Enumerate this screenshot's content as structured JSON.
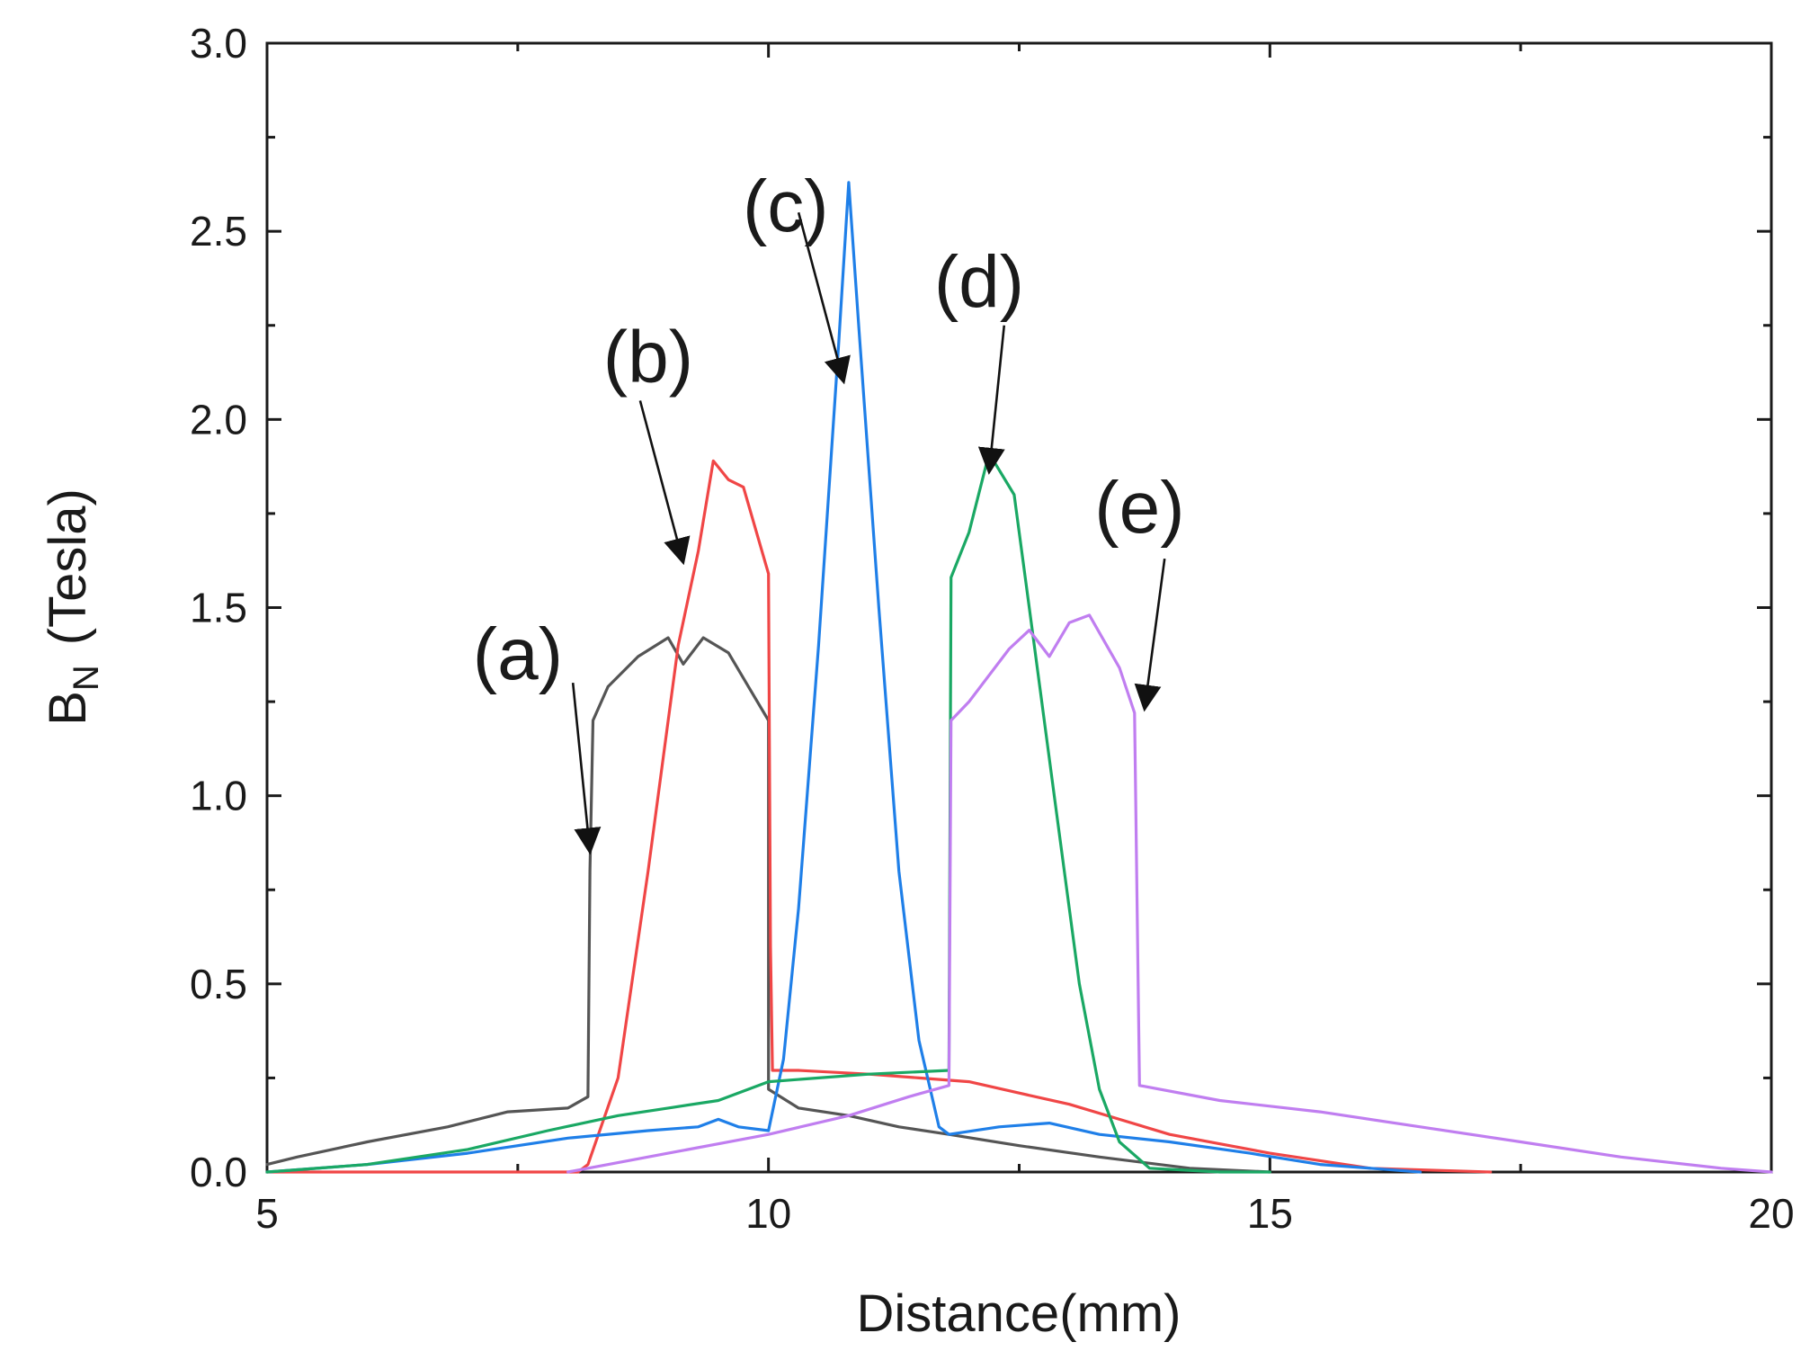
{
  "chart_data": {
    "type": "line",
    "title": "",
    "xlabel": "Distance(mm)",
    "ylabel_main": "B",
    "ylabel_sub": "N",
    "ylabel_unit": "(Tesla)",
    "xlim": [
      5,
      20
    ],
    "ylim": [
      0,
      3.0
    ],
    "x_ticks": [
      5,
      10,
      15,
      20
    ],
    "x_tick_labels": [
      "5",
      "10",
      "15",
      "20"
    ],
    "y_ticks": [
      0,
      0.5,
      1.0,
      1.5,
      2.0,
      2.5,
      3.0
    ],
    "y_tick_labels": [
      "0.0",
      "0.5",
      "1.0",
      "1.5",
      "2.0",
      "2.5",
      "3.0"
    ],
    "x_minor_step": 2.5,
    "y_minor_step": 0.25,
    "grid": false,
    "legend": "none",
    "series": [
      {
        "name": "(a)",
        "color": "#555555",
        "x": [
          5.0,
          5.3,
          6.0,
          6.8,
          7.4,
          8.0,
          8.2,
          8.22,
          8.25,
          8.4,
          8.7,
          9.0,
          9.15,
          9.35,
          9.6,
          9.8,
          10.0,
          10.0,
          10.3,
          10.8,
          11.3,
          11.8,
          12.5,
          13.3,
          14.2,
          15.0
        ],
        "y": [
          0.02,
          0.04,
          0.08,
          0.12,
          0.16,
          0.17,
          0.2,
          0.8,
          1.2,
          1.29,
          1.37,
          1.42,
          1.35,
          1.42,
          1.38,
          1.29,
          1.2,
          0.22,
          0.17,
          0.15,
          0.12,
          0.1,
          0.07,
          0.04,
          0.01,
          0.0
        ]
      },
      {
        "name": "(b)",
        "color": "#f04646",
        "x": [
          5.0,
          8.1,
          8.2,
          8.5,
          8.8,
          9.1,
          9.3,
          9.45,
          9.6,
          9.75,
          10.0,
          10.02,
          10.04,
          10.3,
          11.0,
          11.5,
          12.0,
          12.5,
          13.0,
          13.5,
          14.0,
          15.0,
          16.0,
          17.2
        ],
        "y": [
          0.0,
          0.0,
          0.02,
          0.25,
          0.8,
          1.4,
          1.65,
          1.89,
          1.84,
          1.82,
          1.59,
          0.6,
          0.27,
          0.27,
          0.26,
          0.25,
          0.24,
          0.21,
          0.18,
          0.14,
          0.1,
          0.05,
          0.01,
          0.0
        ]
      },
      {
        "name": "(c)",
        "color": "#1f7fe8",
        "x": [
          5.0,
          6.0,
          7.0,
          8.0,
          8.8,
          9.3,
          9.5,
          9.7,
          10.0,
          10.15,
          10.3,
          10.5,
          10.7,
          10.8,
          10.9,
          11.1,
          11.3,
          11.5,
          11.7,
          11.8,
          12.3,
          12.8,
          13.3,
          14.0,
          14.8,
          15.5,
          16.5
        ],
        "y": [
          0.0,
          0.02,
          0.05,
          0.09,
          0.11,
          0.12,
          0.14,
          0.12,
          0.11,
          0.3,
          0.7,
          1.4,
          2.2,
          2.63,
          2.25,
          1.5,
          0.8,
          0.35,
          0.12,
          0.1,
          0.12,
          0.13,
          0.1,
          0.08,
          0.05,
          0.02,
          0.0
        ]
      },
      {
        "name": "(d)",
        "color": "#1aa864",
        "x": [
          5.0,
          6.0,
          7.0,
          7.8,
          8.5,
          9.0,
          9.5,
          10.0,
          10.5,
          11.0,
          11.8,
          11.82,
          12.0,
          12.2,
          12.45,
          12.6,
          12.85,
          13.1,
          13.3,
          13.5,
          13.8,
          14.5,
          15.0
        ],
        "y": [
          0.0,
          0.02,
          0.06,
          0.11,
          0.15,
          0.17,
          0.19,
          0.24,
          0.25,
          0.26,
          0.27,
          1.58,
          1.7,
          1.91,
          1.8,
          1.5,
          1.0,
          0.5,
          0.22,
          0.08,
          0.01,
          0.0,
          0.0
        ]
      },
      {
        "name": "(e)",
        "color": "#c07ef0",
        "x": [
          8.0,
          9.0,
          10.0,
          10.8,
          11.4,
          11.8,
          11.82,
          12.0,
          12.4,
          12.6,
          12.8,
          13.0,
          13.2,
          13.5,
          13.65,
          13.7,
          14.5,
          15.5,
          16.5,
          17.5,
          18.5,
          19.5,
          20.0
        ],
        "y": [
          0.0,
          0.05,
          0.1,
          0.15,
          0.2,
          0.23,
          1.2,
          1.25,
          1.39,
          1.44,
          1.37,
          1.46,
          1.48,
          1.34,
          1.22,
          0.23,
          0.19,
          0.16,
          0.12,
          0.08,
          0.04,
          0.01,
          0.0
        ]
      }
    ],
    "annotations": [
      {
        "text": "(a)",
        "label_x": 7.95,
        "label_y": 1.31,
        "tail_x": 8.05,
        "tail_y": 1.3,
        "head_x": 8.22,
        "head_y": 0.85
      },
      {
        "text": "(b)",
        "label_x": 9.25,
        "label_y": 2.1,
        "tail_x": 8.72,
        "tail_y": 2.05,
        "head_x": 9.15,
        "head_y": 1.62
      },
      {
        "text": "(c)",
        "label_x": 10.6,
        "label_y": 2.5,
        "tail_x": 10.3,
        "tail_y": 2.55,
        "head_x": 10.75,
        "head_y": 2.1
      },
      {
        "text": "(d)",
        "label_x": 12.55,
        "label_y": 2.3,
        "tail_x": 12.35,
        "tail_y": 2.25,
        "head_x": 12.2,
        "head_y": 1.86
      },
      {
        "text": "(e)",
        "label_x": 14.15,
        "label_y": 1.7,
        "tail_x": 13.95,
        "tail_y": 1.63,
        "head_x": 13.75,
        "head_y": 1.23
      }
    ]
  }
}
